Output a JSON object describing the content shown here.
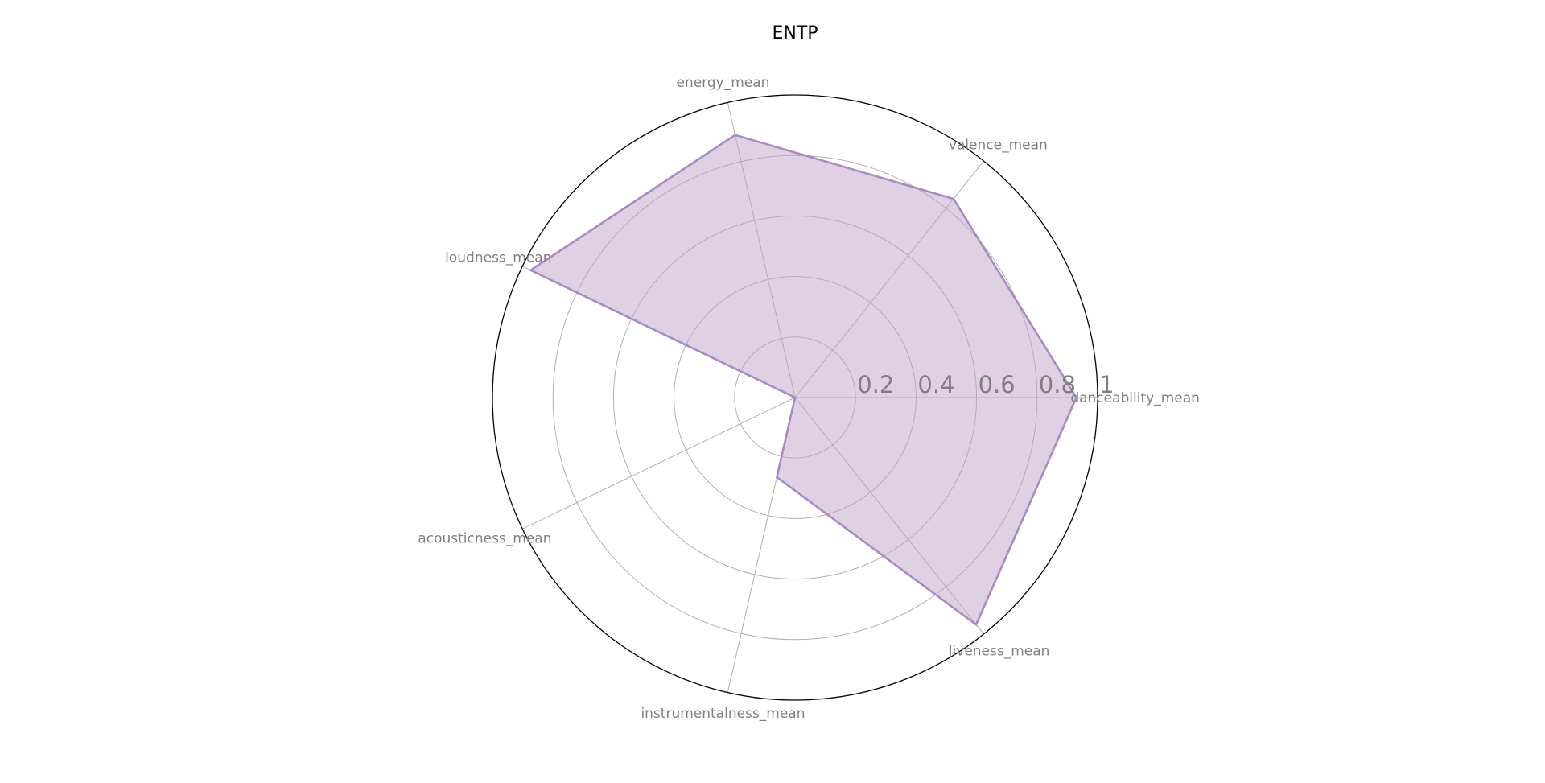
{
  "chart_data": {
    "type": "radar",
    "title": "ENTP",
    "axes": [
      "danceability_mean",
      "valence_mean",
      "energy_mean",
      "loudness_mean",
      "acousticness_mean",
      "instrumentalness_mean",
      "liveness_mean"
    ],
    "values": [
      0.93,
      0.84,
      0.89,
      0.97,
      0.0,
      0.27,
      0.96
    ],
    "rlim": [
      0,
      1
    ],
    "rticks": [
      0.2,
      0.4,
      0.6,
      0.8,
      1
    ],
    "rtick_labels": [
      "0.2",
      "0.4",
      "0.6",
      "0.8",
      "1"
    ],
    "grid": true,
    "colors": {
      "fill": "#bfa2c9",
      "line": "#a98bc2",
      "grid": "#b0b0b0",
      "outer": "#000000",
      "label": "#7f7f7f"
    }
  }
}
